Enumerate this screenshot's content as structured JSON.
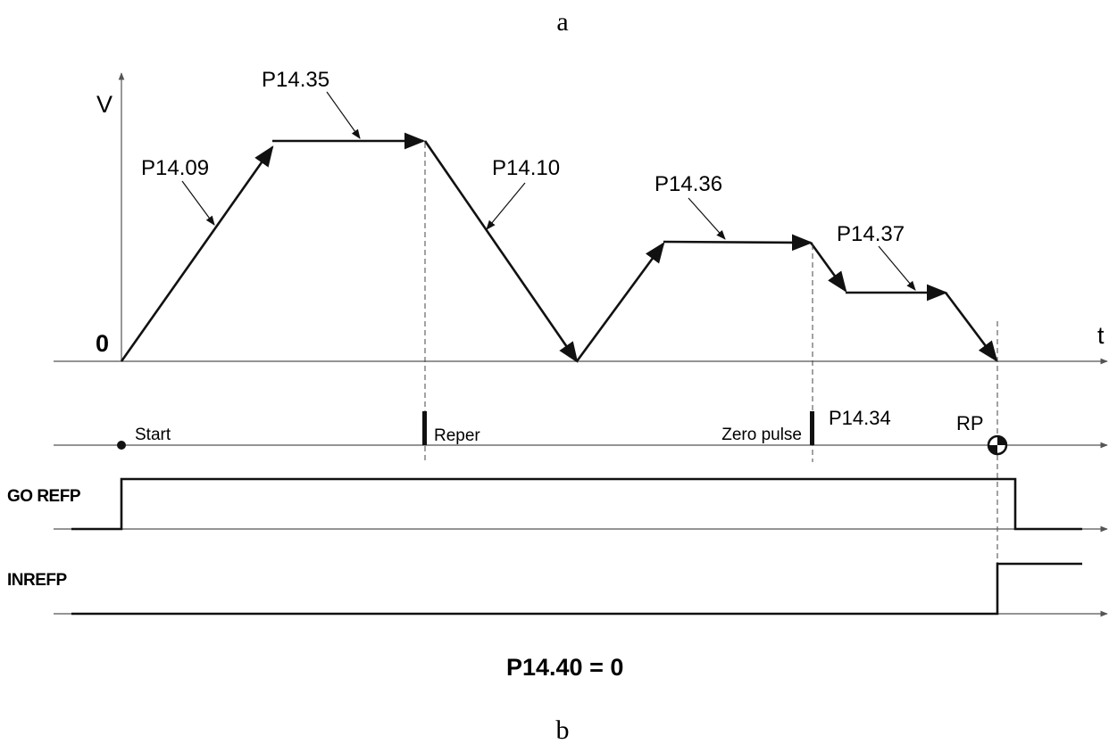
{
  "captions": {
    "top": "a",
    "bottom": "b"
  },
  "axes": {
    "y_label": "V",
    "x_label": "t",
    "origin_label": "0"
  },
  "profile_labels": {
    "acc": "P14.09",
    "fast_speed": "P14.35",
    "dec": "P14.10",
    "slow_speed": "P14.36",
    "final_speed": "P14.37"
  },
  "events": {
    "start": "Start",
    "reper": "Reper",
    "zero_pulse": "Zero pulse",
    "offset": "P14.34",
    "rp": "RP"
  },
  "signals": {
    "go_refp": "GO REFP",
    "inrefp": "INREFP"
  },
  "setting": "P14.40 = 0",
  "colors": {
    "line": "#111111",
    "axis": "#555555"
  }
}
